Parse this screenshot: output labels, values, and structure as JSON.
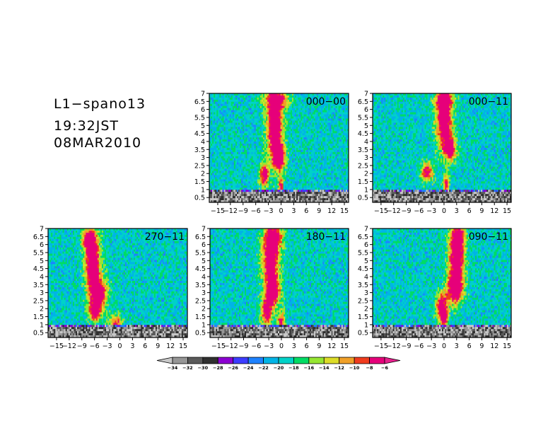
{
  "header": {
    "line1": "L1−spano13",
    "line2": "19:32JST",
    "line3": "08MAR2010"
  },
  "chart_data": {
    "type": "heatmap",
    "xticks": [
      -15,
      -12,
      -9,
      -6,
      -3,
      0,
      3,
      6,
      9,
      12,
      15
    ],
    "xtick_labels": [
      "−15",
      "−12",
      "−9",
      "−6",
      "−3",
      "0",
      "3",
      "6",
      "9",
      "12",
      "15"
    ],
    "xlim": [
      -17,
      16
    ],
    "yticks": [
      0.5,
      1,
      1.5,
      2,
      2.5,
      3,
      3.5,
      4,
      4.5,
      5,
      5.5,
      6,
      6.5,
      7
    ],
    "ytick_labels": [
      "0.5",
      "1",
      "1.5",
      "2",
      "2.5",
      "3",
      "3.5",
      "4",
      "4.5",
      "5",
      "5.5",
      "6",
      "6.5",
      "7"
    ],
    "ylim": [
      0.2,
      7
    ],
    "panels": [
      {
        "title": "000−00",
        "features": [
          {
            "x": -1.5,
            "y": 5.0,
            "sx": 1.3,
            "sy": 1.4,
            "amp": 1.0
          },
          {
            "x": -0.5,
            "y": 3.0,
            "sx": 1.0,
            "sy": 0.6,
            "amp": 0.9
          },
          {
            "x": -4.0,
            "y": 1.9,
            "sx": 0.8,
            "sy": 0.5,
            "amp": 0.85
          },
          {
            "x": 0.0,
            "y": 1.0,
            "sx": 0.4,
            "sy": 0.5,
            "amp": 0.8
          },
          {
            "x": -1.0,
            "y": 6.6,
            "sx": 2.0,
            "sy": 0.4,
            "amp": 0.6
          }
        ]
      },
      {
        "title": "000−11",
        "features": [
          {
            "x": 0.0,
            "y": 5.3,
            "sx": 1.3,
            "sy": 1.2,
            "amp": 1.0
          },
          {
            "x": 1.5,
            "y": 3.5,
            "sx": 1.0,
            "sy": 0.5,
            "amp": 0.85
          },
          {
            "x": -4.0,
            "y": 2.1,
            "sx": 1.0,
            "sy": 0.4,
            "amp": 0.8
          },
          {
            "x": 0.5,
            "y": 1.3,
            "sx": 0.5,
            "sy": 0.4,
            "amp": 0.75
          },
          {
            "x": 0.0,
            "y": 6.6,
            "sx": 1.5,
            "sy": 0.4,
            "amp": 0.6
          }
        ]
      },
      {
        "title": "270−11",
        "features": [
          {
            "x": -6.5,
            "y": 5.0,
            "sx": 1.2,
            "sy": 1.3,
            "amp": 1.0
          },
          {
            "x": -5.0,
            "y": 2.9,
            "sx": 1.4,
            "sy": 0.7,
            "amp": 0.9
          },
          {
            "x": -6.0,
            "y": 1.8,
            "sx": 0.9,
            "sy": 0.4,
            "amp": 0.85
          },
          {
            "x": -1.0,
            "y": 1.0,
            "sx": 1.0,
            "sy": 0.4,
            "amp": 0.7
          },
          {
            "x": -7.5,
            "y": 6.3,
            "sx": 1.0,
            "sy": 0.4,
            "amp": 0.75
          }
        ]
      },
      {
        "title": "180−11",
        "features": [
          {
            "x": -2.5,
            "y": 5.2,
            "sx": 1.4,
            "sy": 1.3,
            "amp": 1.0
          },
          {
            "x": -2.0,
            "y": 3.0,
            "sx": 1.2,
            "sy": 0.6,
            "amp": 0.85
          },
          {
            "x": -3.5,
            "y": 1.8,
            "sx": 0.9,
            "sy": 0.6,
            "amp": 0.8
          },
          {
            "x": 0.0,
            "y": 1.2,
            "sx": 0.6,
            "sy": 0.4,
            "amp": 0.7
          },
          {
            "x": -1.5,
            "y": 6.5,
            "sx": 1.5,
            "sy": 0.4,
            "amp": 0.6
          }
        ]
      },
      {
        "title": "090−11",
        "features": [
          {
            "x": 3.0,
            "y": 5.2,
            "sx": 1.3,
            "sy": 1.3,
            "amp": 1.0
          },
          {
            "x": 2.5,
            "y": 3.2,
            "sx": 1.3,
            "sy": 0.6,
            "amp": 0.85
          },
          {
            "x": -0.5,
            "y": 2.1,
            "sx": 1.0,
            "sy": 0.6,
            "amp": 0.85
          },
          {
            "x": 0.0,
            "y": 1.3,
            "sx": 0.6,
            "sy": 0.4,
            "amp": 0.7
          },
          {
            "x": 3.5,
            "y": 6.5,
            "sx": 1.0,
            "sy": 0.4,
            "amp": 0.65
          }
        ]
      }
    ],
    "colorbar": {
      "levels": [
        -34,
        -32,
        -30,
        -28,
        -26,
        -24,
        -22,
        -20,
        -18,
        -16,
        -14,
        -12,
        -10,
        -8,
        -6
      ],
      "labels": [
        "−34",
        "−32",
        "−30",
        "−28",
        "−26",
        "−24",
        "−22",
        "−20",
        "−18",
        "−16",
        "−14",
        "−12",
        "−10",
        "−8",
        "−6"
      ],
      "colors": [
        "#c8c8c8",
        "#969696",
        "#5a5a5a",
        "#303030",
        "#8c00d2",
        "#3c3cff",
        "#1e82ff",
        "#00b4e6",
        "#00d2c8",
        "#00dc64",
        "#96e632",
        "#dcdc28",
        "#f0a028",
        "#f03c1e",
        "#e6007a",
        "#e6208c"
      ]
    }
  }
}
